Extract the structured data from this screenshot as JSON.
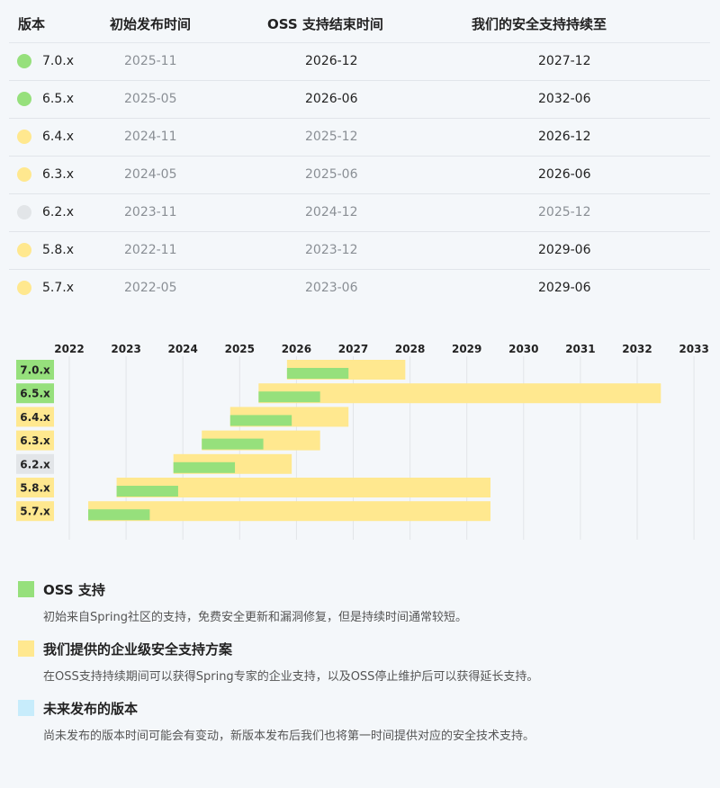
{
  "colors": {
    "oss": "#96e07c",
    "enterprise": "#ffe88f",
    "eol": "#e2e5e8",
    "future": "#c7ecfb",
    "grid": "#e2e5e8"
  },
  "table": {
    "headers": {
      "version": "版本",
      "initial": "初始发布时间",
      "oss_end": "OSS 支持结束时间",
      "security_end": "我们的安全支持持续至"
    },
    "rows": [
      {
        "version": "7.0.x",
        "status": "oss",
        "initial": "2025-11",
        "oss_end": "2026-12",
        "oss_end_active": true,
        "security_end": "2027-12",
        "security_end_active": true
      },
      {
        "version": "6.5.x",
        "status": "oss",
        "initial": "2025-05",
        "oss_end": "2026-06",
        "oss_end_active": true,
        "security_end": "2032-06",
        "security_end_active": true
      },
      {
        "version": "6.4.x",
        "status": "enterprise",
        "initial": "2024-11",
        "oss_end": "2025-12",
        "oss_end_active": false,
        "security_end": "2026-12",
        "security_end_active": true
      },
      {
        "version": "6.3.x",
        "status": "enterprise",
        "initial": "2024-05",
        "oss_end": "2025-06",
        "oss_end_active": false,
        "security_end": "2026-06",
        "security_end_active": true
      },
      {
        "version": "6.2.x",
        "status": "eol",
        "initial": "2023-11",
        "oss_end": "2024-12",
        "oss_end_active": false,
        "security_end": "2025-12",
        "security_end_active": false
      },
      {
        "version": "5.8.x",
        "status": "enterprise",
        "initial": "2022-11",
        "oss_end": "2023-12",
        "oss_end_active": false,
        "security_end": "2029-06",
        "security_end_active": true
      },
      {
        "version": "5.7.x",
        "status": "enterprise",
        "initial": "2022-05",
        "oss_end": "2023-06",
        "oss_end_active": false,
        "security_end": "2029-06",
        "security_end_active": true
      }
    ]
  },
  "chart_data": {
    "type": "gantt",
    "x_ticks": [
      "2022",
      "2023",
      "2024",
      "2025",
      "2026",
      "2027",
      "2028",
      "2029",
      "2030",
      "2031",
      "2032",
      "2033"
    ],
    "x_range": [
      2022,
      2033
    ],
    "grid": true,
    "rows": [
      {
        "label": "7.0.x",
        "status": "oss",
        "start": "2025-11",
        "oss_end": "2026-12",
        "enterprise_end": "2027-12"
      },
      {
        "label": "6.5.x",
        "status": "oss",
        "start": "2025-05",
        "oss_end": "2026-06",
        "enterprise_end": "2032-06"
      },
      {
        "label": "6.4.x",
        "status": "enterprise",
        "start": "2024-11",
        "oss_end": "2025-12",
        "enterprise_end": "2026-12"
      },
      {
        "label": "6.3.x",
        "status": "enterprise",
        "start": "2024-05",
        "oss_end": "2025-06",
        "enterprise_end": "2026-06"
      },
      {
        "label": "6.2.x",
        "status": "eol",
        "start": "2023-11",
        "oss_end": "2024-12",
        "enterprise_end": "2025-12"
      },
      {
        "label": "5.8.x",
        "status": "enterprise",
        "start": "2022-11",
        "oss_end": "2023-12",
        "enterprise_end": "2029-06"
      },
      {
        "label": "5.7.x",
        "status": "enterprise",
        "start": "2022-05",
        "oss_end": "2023-06",
        "enterprise_end": "2029-06"
      }
    ]
  },
  "legend": [
    {
      "key": "oss",
      "title": "OSS 支持",
      "desc": "初始来自Spring社区的支持，免费安全更新和漏洞修复，但是持续时间通常较短。"
    },
    {
      "key": "enterprise",
      "title": "我们提供的企业级安全支持方案",
      "desc": "在OSS支持持续期间可以获得Spring专家的企业支持，以及OSS停止维护后可以获得延长支持。"
    },
    {
      "key": "future",
      "title": "未来发布的版本",
      "desc": "尚未发布的版本时间可能会有变动，新版本发布后我们也将第一时间提供对应的安全技术支持。"
    }
  ]
}
